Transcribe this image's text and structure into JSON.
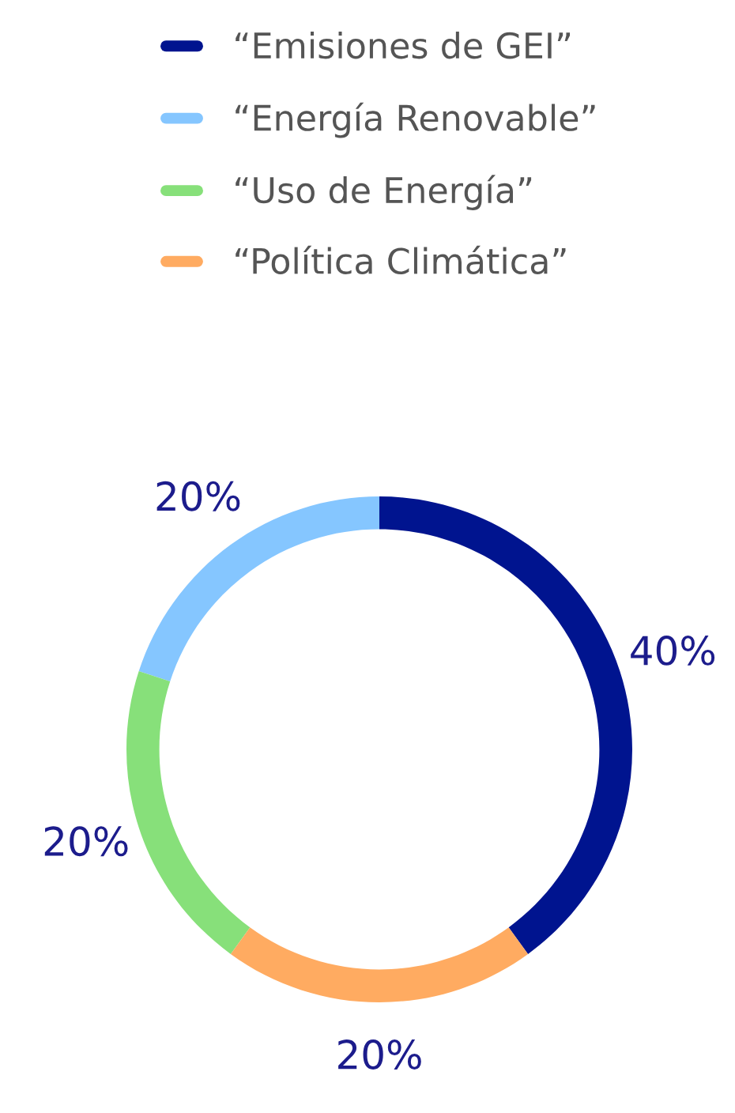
{
  "chart_data": {
    "type": "donut",
    "categories": [
      "“Emisiones de GEI”",
      "“Energía Renovable”",
      "“Uso de Energía”",
      "“Política Climática”"
    ],
    "values": [
      40,
      20,
      20,
      20
    ],
    "value_labels": [
      "40%",
      "20%",
      "20%",
      "20%"
    ],
    "colors": [
      "#00148f",
      "#85c6ff",
      "#87e07a",
      "#ffab61"
    ],
    "legend": "top"
  }
}
